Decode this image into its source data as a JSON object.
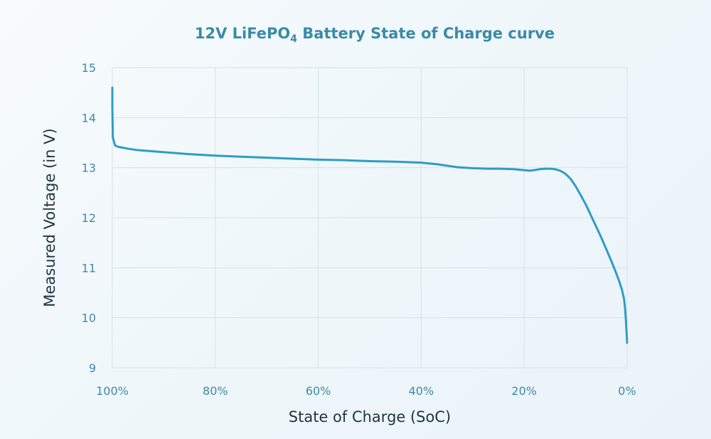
{
  "chart_data": {
    "type": "line",
    "title": {
      "prefix": "12V LiFePO",
      "subscript": "4",
      "suffix": " Battery State of Charge curve"
    },
    "xlabel": "State of Charge (SoC)",
    "ylabel": "Measured Voltage (in V)",
    "xlim": [
      100,
      0
    ],
    "ylim": [
      9,
      15
    ],
    "x_ticks": [
      100,
      80,
      60,
      40,
      20,
      0
    ],
    "x_tick_labels": [
      "100%",
      "80%",
      "60%",
      "40%",
      "20%",
      "0%"
    ],
    "y_ticks": [
      9,
      10,
      11,
      12,
      13,
      14,
      15
    ],
    "y_tick_labels": [
      "9",
      "10",
      "11",
      "12",
      "13",
      "14",
      "15"
    ],
    "grid": true,
    "series": [
      {
        "name": "Measured Voltage",
        "color": "#2f9cc4",
        "x": [
          100,
          100,
          99.9,
          99.5,
          99,
          97,
          95,
          90,
          85,
          80,
          75,
          70,
          65,
          60,
          55,
          50,
          45,
          40,
          37,
          35,
          33,
          30,
          27,
          25,
          22,
          20,
          19,
          18,
          17,
          16,
          15,
          14,
          13,
          12,
          11,
          10,
          9,
          8,
          7,
          6,
          5,
          4,
          3,
          2,
          1.5,
          1,
          0.6,
          0.4,
          0.2,
          0
        ],
        "y": [
          14.6,
          14.2,
          13.6,
          13.45,
          13.42,
          13.38,
          13.35,
          13.31,
          13.27,
          13.24,
          13.22,
          13.2,
          13.18,
          13.16,
          13.15,
          13.13,
          13.12,
          13.1,
          13.07,
          13.04,
          13.01,
          12.99,
          12.98,
          12.98,
          12.97,
          12.95,
          12.94,
          12.95,
          12.97,
          12.98,
          12.98,
          12.97,
          12.94,
          12.88,
          12.78,
          12.63,
          12.45,
          12.26,
          12.04,
          11.82,
          11.6,
          11.36,
          11.12,
          10.86,
          10.72,
          10.56,
          10.38,
          10.2,
          9.9,
          9.5
        ]
      }
    ]
  }
}
